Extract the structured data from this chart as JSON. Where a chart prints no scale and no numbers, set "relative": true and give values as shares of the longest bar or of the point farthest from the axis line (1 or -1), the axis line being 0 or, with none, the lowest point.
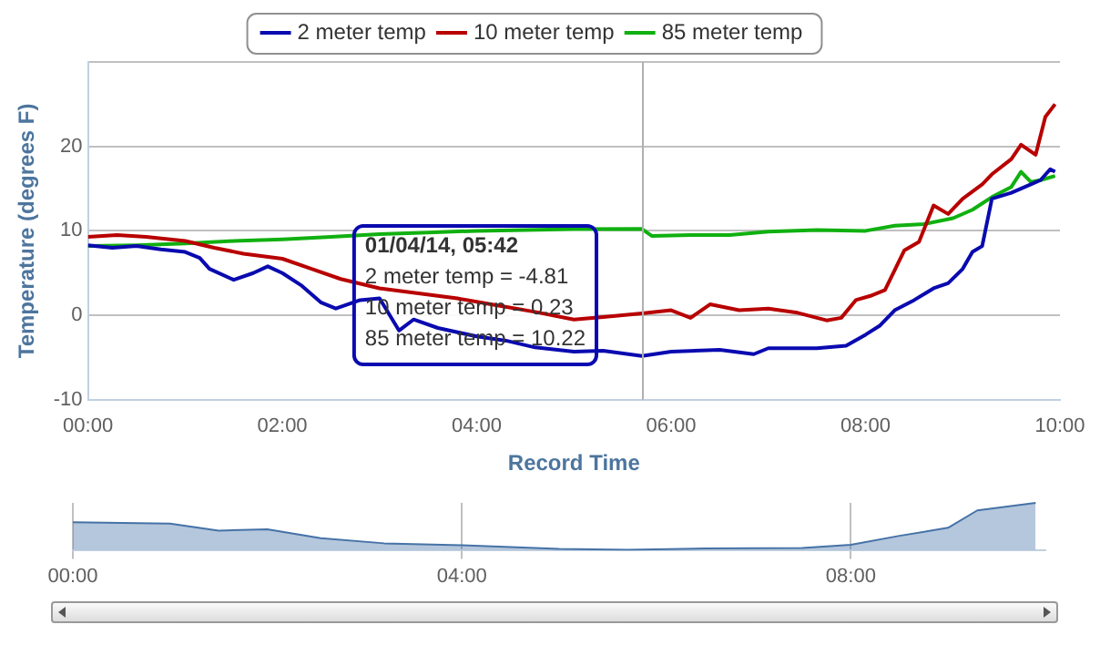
{
  "chart_data": [
    {
      "type": "line",
      "xlabel": "Record Time",
      "ylabel": "Temperature (degrees F)",
      "xlim": [
        0,
        10
      ],
      "xticks": [
        {
          "value": 0,
          "label": "00:00"
        },
        {
          "value": 2,
          "label": "02:00"
        },
        {
          "value": 4,
          "label": "04:00"
        },
        {
          "value": 6,
          "label": "06:00"
        },
        {
          "value": 8,
          "label": "08:00"
        },
        {
          "value": 10,
          "label": "10:00"
        }
      ],
      "ylim": [
        -10,
        30
      ],
      "yticks": [
        -10,
        0,
        10,
        20,
        {
          "value": 30,
          "label": null
        }
      ],
      "grid": "y",
      "legend": "top",
      "series": [
        {
          "name": "2 meter temp",
          "color": "#0a0ab0",
          "x": [
            0,
            0.25,
            0.5,
            0.75,
            1.0,
            1.15,
            1.25,
            1.5,
            1.7,
            1.85,
            2.0,
            2.2,
            2.4,
            2.55,
            2.8,
            3.0,
            3.2,
            3.35,
            3.6,
            4.0,
            4.3,
            4.6,
            5.0,
            5.3,
            5.7,
            6.0,
            6.5,
            6.85,
            7.0,
            7.5,
            7.8,
            8.0,
            8.15,
            8.3,
            8.5,
            8.7,
            8.85,
            9.0,
            9.1,
            9.2,
            9.3,
            9.5,
            9.7,
            9.8,
            9.9,
            9.95
          ],
          "values": [
            8.3,
            8.0,
            8.2,
            7.8,
            7.5,
            6.8,
            5.5,
            4.2,
            5.0,
            5.8,
            5.0,
            3.5,
            1.5,
            0.8,
            1.8,
            2.0,
            -1.8,
            -0.5,
            -1.5,
            -2.5,
            -3.0,
            -3.8,
            -4.3,
            -4.2,
            -4.81,
            -4.3,
            -4.1,
            -4.6,
            -3.9,
            -3.9,
            -3.6,
            -2.3,
            -1.2,
            0.6,
            1.8,
            3.2,
            3.8,
            5.5,
            7.5,
            8.2,
            13.8,
            14.5,
            15.5,
            16.0,
            17.3,
            17.0
          ]
        },
        {
          "name": "10 meter temp",
          "color": "#b80000",
          "x": [
            0,
            0.3,
            0.6,
            1.0,
            1.3,
            1.6,
            2.0,
            2.3,
            2.6,
            3.0,
            3.4,
            3.8,
            4.2,
            4.6,
            5.0,
            5.3,
            5.7,
            6.0,
            6.2,
            6.4,
            6.7,
            7.0,
            7.3,
            7.6,
            7.75,
            7.9,
            8.05,
            8.2,
            8.4,
            8.55,
            8.7,
            8.85,
            9.0,
            9.2,
            9.3,
            9.5,
            9.6,
            9.75,
            9.85,
            9.95
          ],
          "values": [
            9.3,
            9.5,
            9.3,
            8.8,
            8.0,
            7.3,
            6.7,
            5.5,
            4.3,
            3.2,
            2.6,
            2.0,
            1.2,
            0.4,
            -0.5,
            -0.2,
            0.23,
            0.6,
            -0.3,
            1.3,
            0.6,
            0.8,
            0.3,
            -0.6,
            -0.3,
            1.8,
            2.3,
            3.0,
            7.7,
            8.7,
            13.0,
            12.0,
            13.8,
            15.5,
            16.7,
            18.5,
            20.2,
            19.0,
            23.5,
            25.0
          ]
        },
        {
          "name": "85 meter temp",
          "color": "#10b010",
          "x": [
            0,
            0.5,
            1.0,
            1.5,
            2.0,
            2.5,
            3.0,
            3.5,
            4.0,
            4.5,
            5.0,
            5.7,
            5.8,
            6.2,
            6.6,
            7.0,
            7.5,
            8.0,
            8.3,
            8.6,
            8.9,
            9.1,
            9.3,
            9.5,
            9.6,
            9.7,
            9.8,
            9.95
          ],
          "values": [
            8.2,
            8.3,
            8.5,
            8.8,
            9.0,
            9.3,
            9.6,
            9.8,
            10.0,
            10.1,
            10.2,
            10.22,
            9.4,
            9.5,
            9.5,
            9.9,
            10.1,
            10.0,
            10.6,
            10.8,
            11.5,
            12.5,
            14.0,
            15.2,
            17.0,
            15.8,
            16.0,
            16.5
          ]
        }
      ],
      "ref_lines": [
        {
          "axis": "x",
          "value": 5.7,
          "color": "#b0b0b0"
        }
      ],
      "annotations": [
        "01/04/14, 05:42",
        "2 meter temp = -4.81",
        "10 meter temp = 0.23",
        "85 meter temp = 10.22"
      ]
    },
    {
      "type": "area",
      "relative": true,
      "xlim": [
        0,
        10
      ],
      "xticks": [
        {
          "value": 0,
          "label": "00:00"
        },
        {
          "value": 4,
          "label": "04:00"
        },
        {
          "value": 8,
          "label": "08:00"
        }
      ],
      "grid": "x",
      "tick_labels": "x",
      "color": "#4572a7",
      "x": [
        0,
        1.0,
        1.5,
        2.0,
        2.55,
        3.2,
        4.0,
        5.0,
        5.7,
        6.5,
        7.5,
        8.0,
        8.5,
        9.0,
        9.3,
        9.9
      ],
      "values": [
        0.59,
        0.56,
        0.41,
        0.44,
        0.25,
        0.14,
        0.1,
        0.02,
        0,
        0.03,
        0.04,
        0.11,
        0.3,
        0.47,
        0.84,
        1
      ]
    }
  ]
}
